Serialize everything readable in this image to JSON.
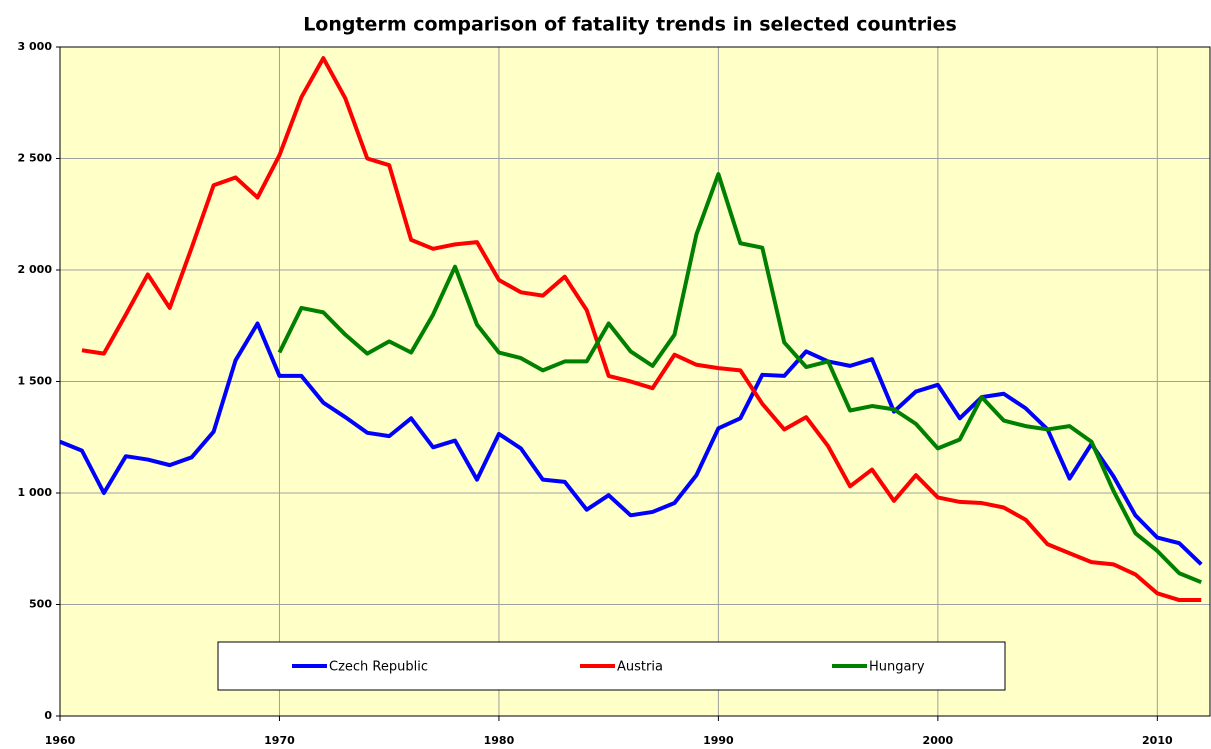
{
  "chart_data": {
    "type": "line",
    "title": "Longterm comparison of fatality trends in selected countries",
    "x": [
      1960,
      1961,
      1962,
      1963,
      1964,
      1965,
      1966,
      1967,
      1968,
      1969,
      1970,
      1971,
      1972,
      1973,
      1974,
      1975,
      1976,
      1977,
      1978,
      1979,
      1980,
      1981,
      1982,
      1983,
      1984,
      1985,
      1986,
      1987,
      1988,
      1989,
      1990,
      1991,
      1992,
      1993,
      1994,
      1995,
      1996,
      1997,
      1998,
      1999,
      2000,
      2001,
      2002,
      2003,
      2004,
      2005,
      2006,
      2007,
      2008,
      2009,
      2010,
      2011,
      2012
    ],
    "series": [
      {
        "name": "Czech Republic",
        "color": "#0000ff",
        "values": [
          1230,
          1190,
          1000,
          1165,
          1150,
          1125,
          1160,
          1275,
          1595,
          1760,
          1525,
          1525,
          1405,
          1340,
          1270,
          1255,
          1335,
          1205,
          1235,
          1060,
          1265,
          1200,
          1060,
          1050,
          925,
          990,
          900,
          915,
          955,
          1080,
          1290,
          1335,
          1530,
          1525,
          1635,
          1590,
          1570,
          1600,
          1365,
          1455,
          1485,
          1335,
          1430,
          1445,
          1380,
          1285,
          1065,
          1220,
          1075,
          900,
          800,
          775,
          680
        ]
      },
      {
        "name": "Austria",
        "color": "#ff0000",
        "values": [
          null,
          1640,
          1625,
          1800,
          1980,
          1830,
          2100,
          2380,
          2415,
          2325,
          2515,
          2775,
          2950,
          2770,
          2500,
          2470,
          2135,
          2095,
          2115,
          2125,
          1955,
          1900,
          1885,
          1970,
          1820,
          1525,
          1500,
          1470,
          1620,
          1575,
          1560,
          1550,
          1400,
          1285,
          1340,
          1210,
          1030,
          1105,
          965,
          1080,
          980,
          960,
          955,
          935,
          880,
          770,
          730,
          690,
          680,
          635,
          550,
          520,
          520
        ]
      },
      {
        "name": "Hungary",
        "color": "#008000",
        "values": [
          null,
          null,
          null,
          null,
          null,
          null,
          null,
          null,
          null,
          null,
          1630,
          1830,
          1810,
          1710,
          1625,
          1680,
          1630,
          1800,
          2015,
          1755,
          1630,
          1605,
          1550,
          1590,
          1590,
          1760,
          1635,
          1570,
          1710,
          2160,
          2430,
          2120,
          2100,
          1675,
          1565,
          1590,
          1370,
          1390,
          1375,
          1310,
          1200,
          1240,
          1430,
          1325,
          1300,
          1285,
          1300,
          1230,
          1010,
          820,
          740,
          640,
          600
        ]
      }
    ],
    "xlim": [
      1960,
      2012.4
    ],
    "xticks": [
      1960,
      1970,
      1980,
      1990,
      2000,
      2010
    ],
    "ylim": [
      0,
      3000
    ],
    "yticks": [
      0,
      500,
      {
        "value": 1000,
        "label": "1 000"
      },
      {
        "value": 1500,
        "label": "1 500"
      },
      {
        "value": 2000,
        "label": "2 000"
      },
      {
        "value": 2500,
        "label": "2 500"
      },
      {
        "value": 3000,
        "label": "3 000"
      }
    ],
    "grid": true,
    "background": "#ffffc8"
  }
}
